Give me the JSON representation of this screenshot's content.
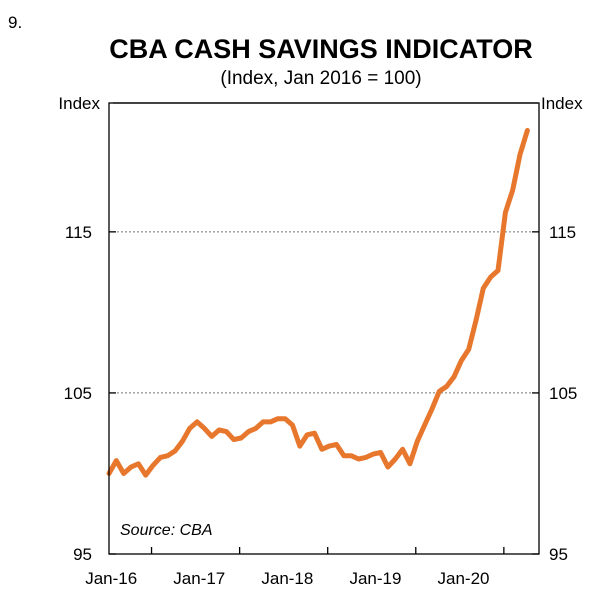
{
  "figure_number": "9.",
  "chart_data": {
    "type": "line",
    "title": "CBA CASH SAVINGS INDICATOR",
    "subtitle": "(Index, Jan 2016 = 100)",
    "ylabel_left": "Index",
    "ylabel_right": "Index",
    "ylim": [
      95,
      123
    ],
    "yticks": [
      95,
      105,
      115
    ],
    "gridlines": [
      105,
      115
    ],
    "xlim": [
      0,
      57
    ],
    "xticks": [
      {
        "label": "Jan-16",
        "x": 0
      },
      {
        "label": "Jan-17",
        "x": 12
      },
      {
        "label": "Jan-18",
        "x": 24
      },
      {
        "label": "Jan-19",
        "x": 36
      },
      {
        "label": "Jan-20",
        "x": 48
      }
    ],
    "source": "Source: CBA",
    "series": [
      {
        "name": "CBA cash savings indicator",
        "color": "#E8772E",
        "x": [
          0,
          1,
          2,
          3,
          4,
          5,
          6,
          7,
          8,
          9,
          10,
          11,
          12,
          13,
          14,
          15,
          16,
          17,
          18,
          19,
          20,
          21,
          22,
          23,
          24,
          25,
          26,
          27,
          28,
          29,
          30,
          31,
          32,
          33,
          34,
          35,
          36,
          37,
          38,
          39,
          40,
          41,
          42,
          43,
          44,
          45,
          46,
          47,
          48,
          49,
          50,
          51,
          52,
          53,
          54,
          55,
          56,
          57
        ],
        "values": [
          100,
          100.8,
          100,
          100.4,
          100.6,
          99.9,
          100.5,
          101,
          101.1,
          101.4,
          102,
          102.8,
          103.2,
          102.8,
          102.3,
          102.7,
          102.6,
          102.1,
          102.2,
          102.6,
          102.8,
          103.2,
          103.2,
          103.4,
          103.4,
          103,
          101.7,
          102.4,
          102.5,
          101.5,
          101.7,
          101.8,
          101.1,
          101.1,
          100.9,
          101,
          101.2,
          101.3,
          100.4,
          100.9,
          101.5,
          100.6,
          102,
          103,
          104,
          105.1,
          105.4,
          106,
          107,
          107.7,
          109.5,
          111.5,
          112.2,
          112.6,
          116.2,
          117.6,
          119.8,
          121.3
        ]
      }
    ]
  }
}
